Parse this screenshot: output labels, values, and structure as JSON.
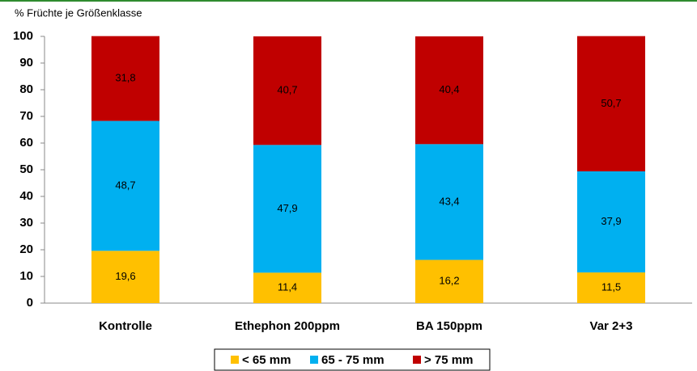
{
  "chart_data": {
    "type": "stacked_bar",
    "y_axis_label": "% Früchte je Größenklasse",
    "categories": [
      "Kontrolle",
      "Ethephon 200ppm",
      "BA 150ppm",
      "Var 2+3"
    ],
    "series": [
      {
        "name": "< 65 mm",
        "color": "#ffc000",
        "values": [
          19.6,
          11.4,
          16.2,
          11.5
        ],
        "value_labels": [
          "19,6",
          "11,4",
          "16,2",
          "11,5"
        ]
      },
      {
        "name": "65 - 75 mm",
        "color": "#00b0f0",
        "values": [
          48.7,
          47.9,
          43.4,
          37.9
        ],
        "value_labels": [
          "48,7",
          "47,9",
          "43,4",
          "37,9"
        ]
      },
      {
        "name": "> 75 mm",
        "color": "#c00000",
        "values": [
          31.8,
          40.7,
          40.4,
          50.7
        ],
        "value_labels": [
          "31,8",
          "40,7",
          "40,4",
          "50,7"
        ]
      }
    ],
    "ylim": [
      0,
      100
    ],
    "yticks": [
      0,
      10,
      20,
      30,
      40,
      50,
      60,
      70,
      80,
      90,
      100
    ],
    "grid": false,
    "legend": "bottom"
  }
}
